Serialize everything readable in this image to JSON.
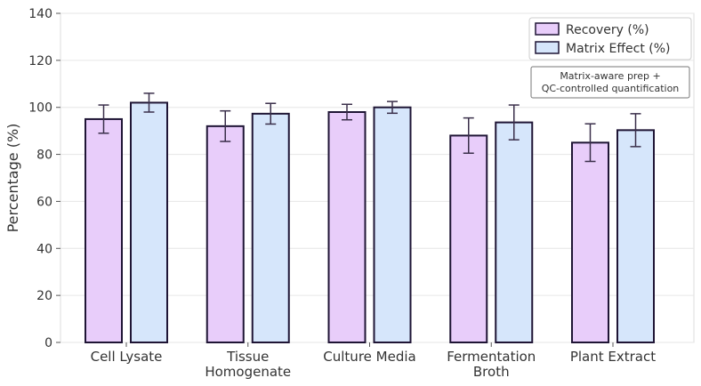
{
  "chart_data": {
    "type": "bar",
    "title": "",
    "xlabel": "",
    "ylabel": "Percentage (%)",
    "ylim": [
      0,
      140
    ],
    "yticks": [
      0,
      20,
      40,
      60,
      80,
      100,
      120,
      140
    ],
    "grid": true,
    "legend_placement": "top-right",
    "categories": [
      [
        "Cell Lysate"
      ],
      [
        "Tissue",
        "Homogenate"
      ],
      [
        "Culture Media"
      ],
      [
        "Fermentation",
        "Broth"
      ],
      [
        "Plant Extract"
      ]
    ],
    "series": [
      {
        "name": "Recovery (%)",
        "color": "#e8cdfa",
        "values": [
          95,
          92,
          98,
          88,
          85
        ],
        "errors": [
          6,
          6.5,
          3.3,
          7.5,
          8
        ]
      },
      {
        "name": "Matrix Effect (%)",
        "color": "#d6e6fb",
        "values": [
          102,
          97.3,
          100,
          93.6,
          90.3
        ],
        "errors": [
          4,
          4.4,
          2.5,
          7.4,
          7
        ]
      }
    ],
    "annotation": [
      "Matrix-aware prep +",
      "QC-controlled quantification"
    ]
  }
}
